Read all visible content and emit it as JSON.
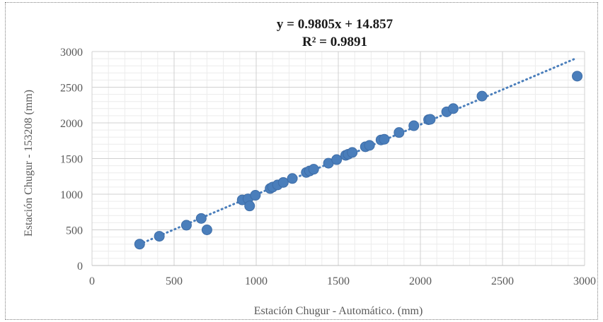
{
  "chart_data": {
    "type": "scatter",
    "xlabel": "Estación Chugur - Automático. (mm)",
    "ylabel": "Estación Chugur - 153208 (mm)",
    "xlim": [
      0,
      3000
    ],
    "ylim": [
      0,
      3000
    ],
    "x_ticks": [
      0,
      500,
      1000,
      1500,
      2000,
      2500,
      3000
    ],
    "y_ticks": [
      0,
      500,
      1000,
      1500,
      2000,
      2500,
      3000
    ],
    "grid": true,
    "minor_grid": true,
    "legend": "none",
    "trendline": {
      "type": "linear",
      "slope": 0.9805,
      "intercept": 14.857,
      "x_range": [
        290,
        2940
      ],
      "equation_label": "y = 0.9805x + 14.857",
      "r2_label": "R² = 0.9891"
    },
    "marker_color": "#4a7ebb",
    "trendline_color": "#4a7ebb",
    "points": [
      [
        290,
        300
      ],
      [
        410,
        410
      ],
      [
        575,
        565
      ],
      [
        665,
        660
      ],
      [
        700,
        500
      ],
      [
        915,
        920
      ],
      [
        950,
        935
      ],
      [
        960,
        835
      ],
      [
        995,
        985
      ],
      [
        1085,
        1080
      ],
      [
        1100,
        1100
      ],
      [
        1130,
        1130
      ],
      [
        1165,
        1165
      ],
      [
        1220,
        1220
      ],
      [
        1305,
        1305
      ],
      [
        1325,
        1325
      ],
      [
        1350,
        1350
      ],
      [
        1440,
        1435
      ],
      [
        1490,
        1485
      ],
      [
        1545,
        1545
      ],
      [
        1560,
        1560
      ],
      [
        1585,
        1585
      ],
      [
        1665,
        1665
      ],
      [
        1690,
        1685
      ],
      [
        1760,
        1760
      ],
      [
        1780,
        1770
      ],
      [
        1870,
        1865
      ],
      [
        1960,
        1960
      ],
      [
        2050,
        2045
      ],
      [
        2060,
        2050
      ],
      [
        2160,
        2155
      ],
      [
        2200,
        2200
      ],
      [
        2375,
        2375
      ],
      [
        2955,
        2655
      ]
    ]
  }
}
